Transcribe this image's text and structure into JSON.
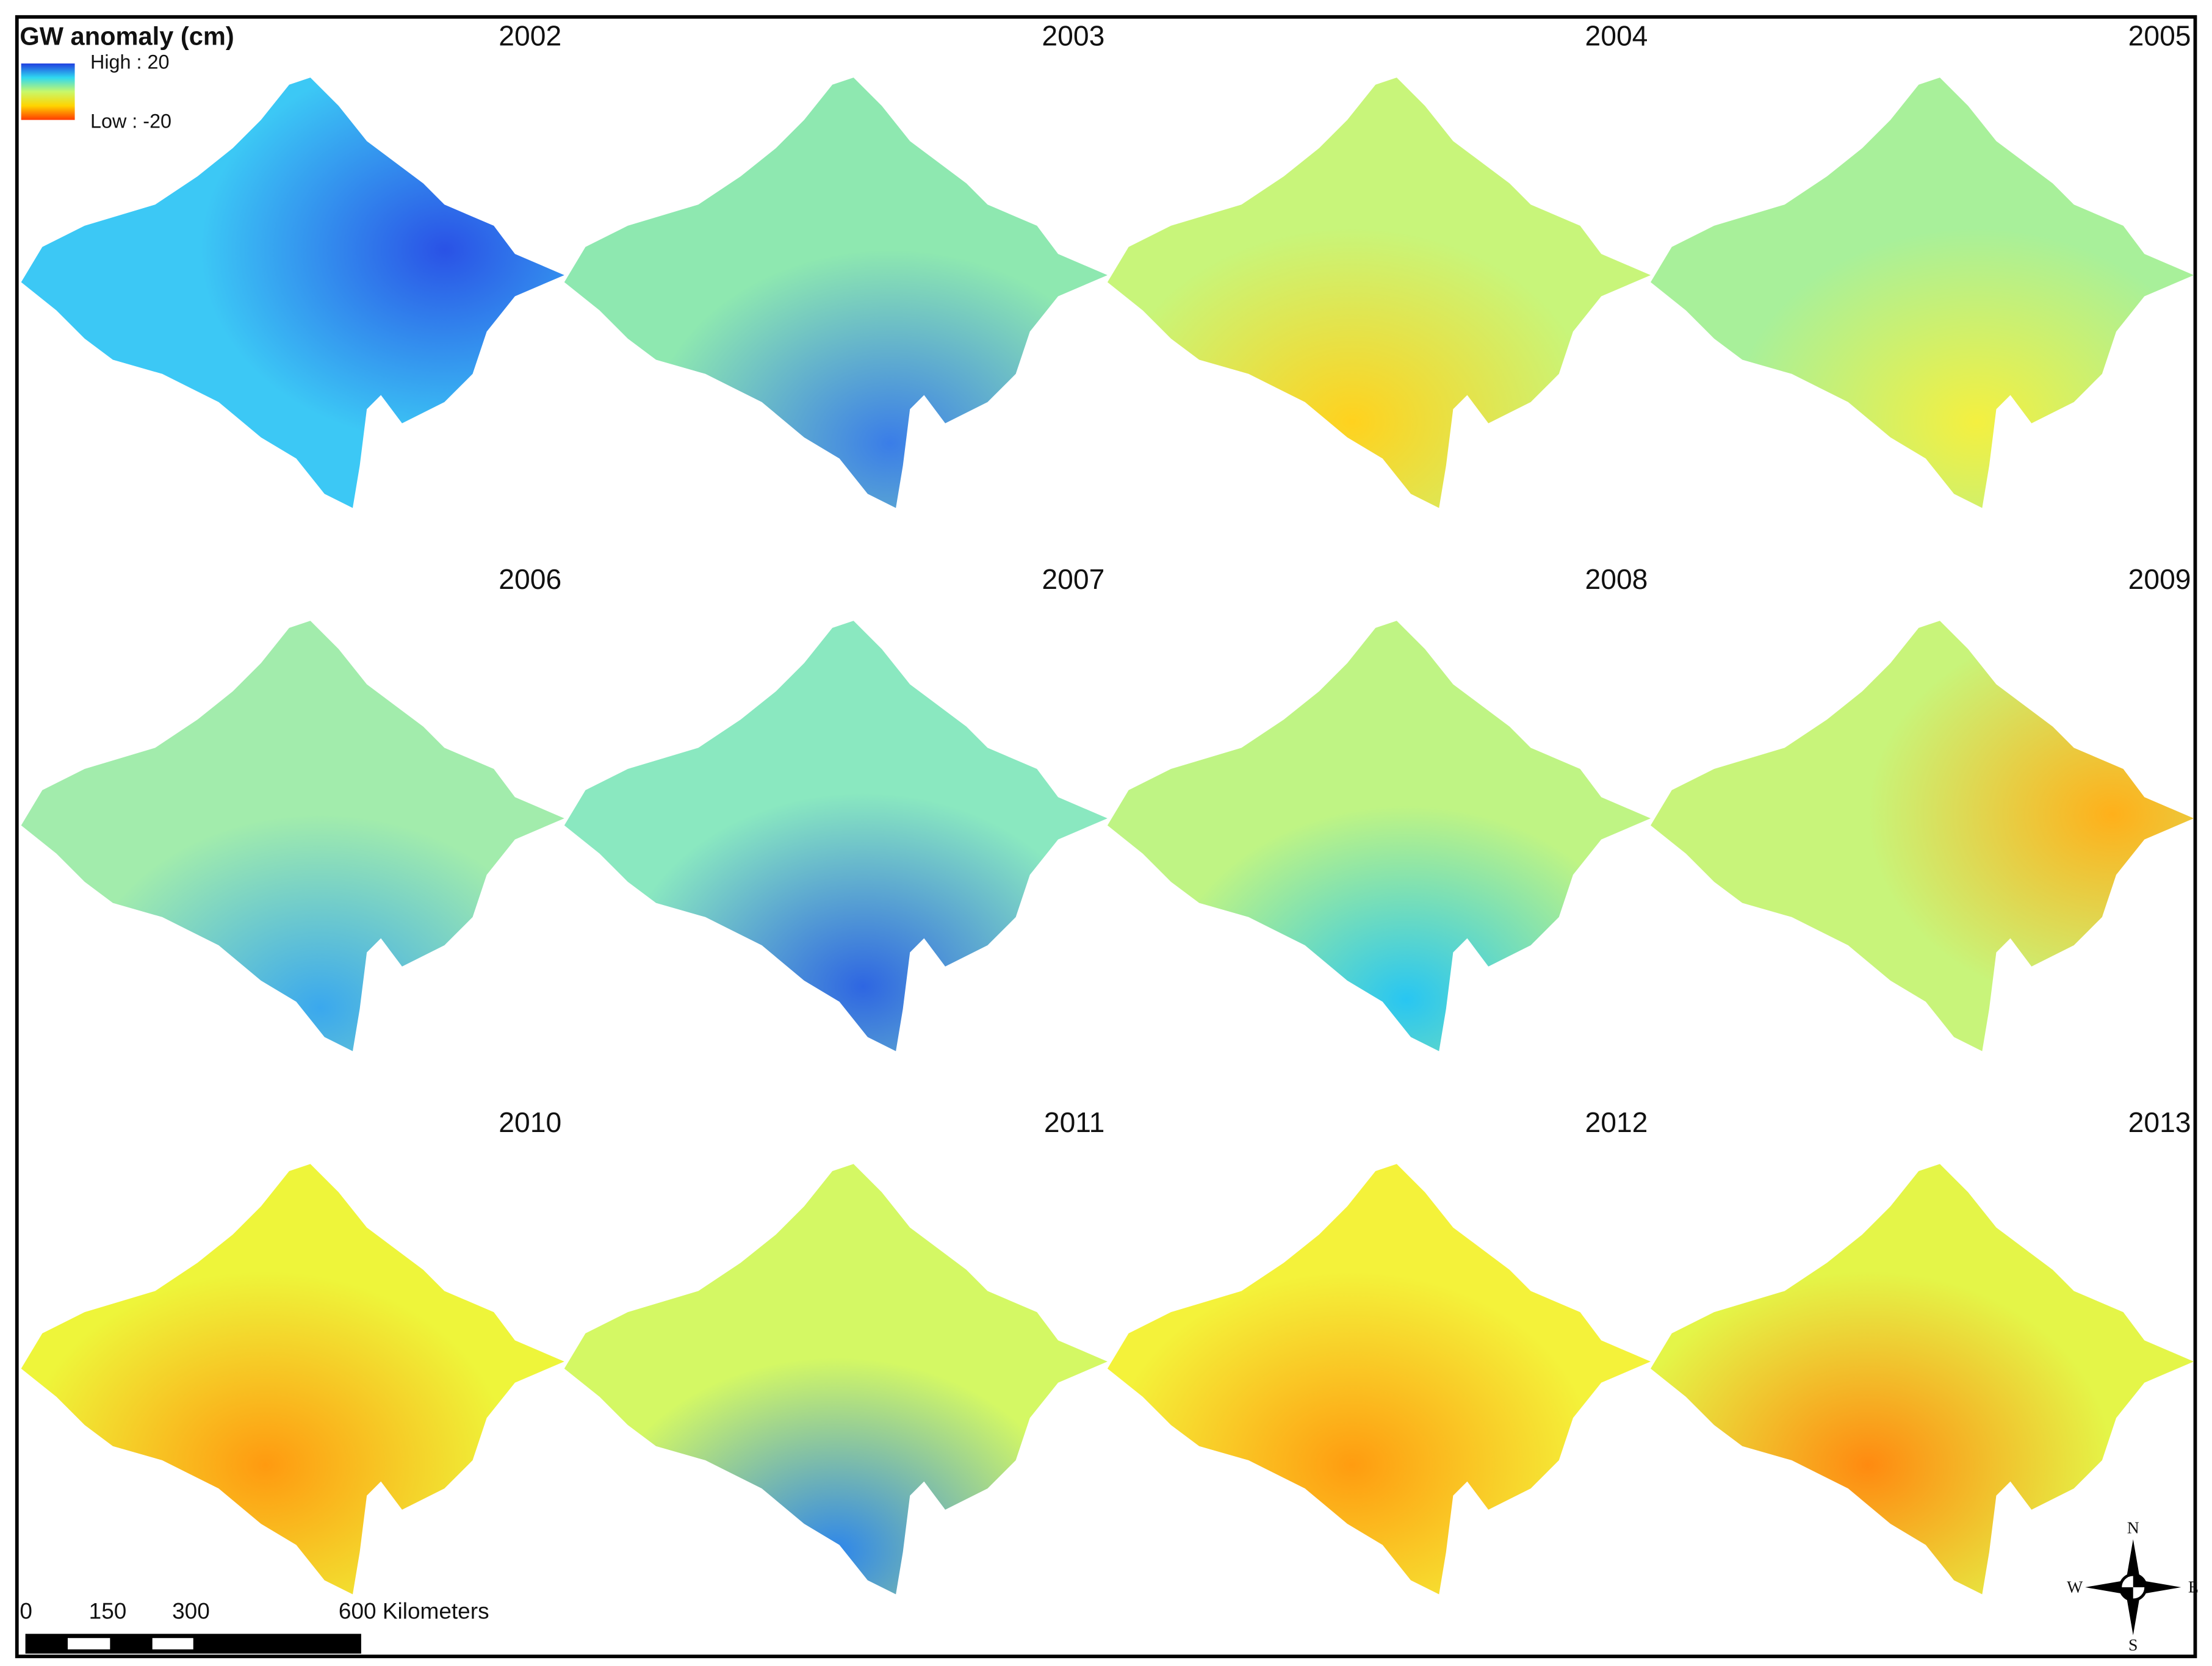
{
  "title": "GW anomaly (cm)",
  "legend": {
    "high": "High : 20",
    "low": "Low : -20",
    "colors": [
      "#1f3fe0",
      "#2fd8f0",
      "#c8f86a",
      "#ffd400",
      "#ff3a00"
    ]
  },
  "panels": [
    {
      "year": "2002",
      "fill": "#3cc8f5",
      "spot": "#2a52e6"
    },
    {
      "year": "2003",
      "fill": "#8ee8b0",
      "spot": "#3a7de8"
    },
    {
      "year": "2004",
      "fill": "#c8f57a",
      "spot": "#ffd21e"
    },
    {
      "year": "2005",
      "fill": "#a8f09a",
      "spot": "#f4f040"
    },
    {
      "year": "2006",
      "fill": "#a2ecac",
      "spot": "#3aa8ee"
    },
    {
      "year": "2007",
      "fill": "#8ae8c0",
      "spot": "#2e66e2"
    },
    {
      "year": "2008",
      "fill": "#bff484",
      "spot": "#28c6f2"
    },
    {
      "year": "2009",
      "fill": "#c8f47a",
      "spot": "#ffb01a"
    },
    {
      "year": "2010",
      "fill": "#eef53a",
      "spot": "#ff9a10"
    },
    {
      "year": "2011",
      "fill": "#d4f864",
      "spot": "#2e86ea"
    },
    {
      "year": "2012",
      "fill": "#f4f23a",
      "spot": "#ff9c10"
    },
    {
      "year": "2013",
      "fill": "#e4f548",
      "spot": "#ff8a10"
    }
  ],
  "scale_bar": {
    "labels": [
      "0",
      "150",
      "300",
      "600 Kilometers"
    ]
  },
  "compass": {
    "n": "N",
    "e": "E",
    "s": "S",
    "w": "W"
  }
}
